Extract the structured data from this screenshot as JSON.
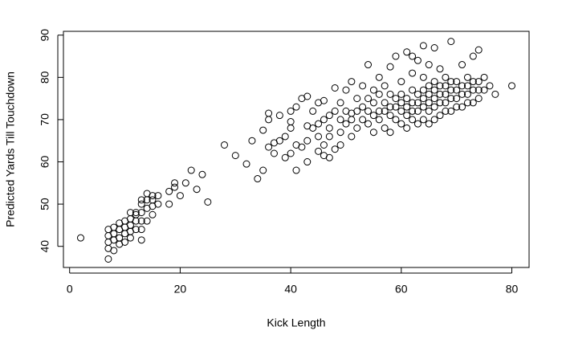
{
  "chart_data": {
    "type": "scatter",
    "x_label": "Kick Length",
    "y_label": "Predicted Yards Till Touchdown",
    "xlim": [
      -1.12,
      83.12
    ],
    "ylim": [
      35.0,
      90.9
    ],
    "xticks": [
      0,
      20,
      40,
      60,
      80
    ],
    "yticks": [
      40,
      50,
      60,
      70,
      80,
      90
    ],
    "color": "#000000",
    "x": [
      2,
      7,
      7,
      7,
      7,
      7,
      8,
      8,
      8,
      8,
      9,
      9,
      9,
      9,
      10,
      10,
      10,
      10,
      11,
      11,
      11,
      11,
      11,
      12,
      12,
      12,
      12,
      13,
      13,
      13,
      13,
      13,
      13,
      14,
      14,
      14,
      14,
      15,
      15,
      15,
      15,
      16,
      16,
      18,
      18,
      19,
      19,
      20,
      21,
      22,
      23,
      24,
      25,
      28,
      30,
      32,
      33,
      34,
      35,
      35,
      36,
      36,
      36,
      37,
      37,
      38,
      38,
      39,
      39,
      40,
      40,
      40,
      40,
      41,
      41,
      41,
      42,
      42,
      43,
      43,
      43,
      43,
      44,
      44,
      45,
      45,
      45,
      45,
      46,
      46,
      46,
      46,
      47,
      47,
      47,
      47,
      48,
      48,
      48,
      49,
      49,
      49,
      49,
      50,
      50,
      50,
      51,
      51,
      51,
      51,
      52,
      52,
      52,
      53,
      53,
      53,
      54,
      54,
      54,
      54,
      55,
      55,
      55,
      55,
      56,
      56,
      56,
      56,
      57,
      57,
      57,
      57,
      58,
      58,
      58,
      58,
      58,
      59,
      59,
      59,
      59,
      60,
      60,
      60,
      60,
      60,
      61,
      61,
      61,
      61,
      61,
      62,
      62,
      62,
      62,
      62,
      62,
      63,
      63,
      63,
      63,
      63,
      64,
      64,
      64,
      64,
      64,
      64,
      65,
      65,
      65,
      65,
      65,
      65,
      66,
      66,
      66,
      66,
      66,
      66,
      67,
      67,
      67,
      67,
      67,
      68,
      68,
      68,
      68,
      68,
      69,
      69,
      69,
      69,
      69,
      70,
      70,
      70,
      70,
      71,
      71,
      71,
      71,
      72,
      72,
      72,
      72,
      73,
      73,
      73,
      73,
      74,
      74,
      74,
      74,
      75,
      75,
      76,
      77,
      80
    ],
    "y": [
      42,
      37,
      39.5,
      41,
      42.5,
      44,
      39,
      41.5,
      43,
      44.5,
      40.5,
      42,
      44,
      45.5,
      41,
      43,
      44.5,
      46,
      42,
      43.5,
      45,
      46.5,
      48,
      44,
      46,
      47.5,
      48,
      41.5,
      44,
      46,
      48,
      50,
      51,
      46,
      49,
      51,
      52.5,
      47.5,
      49.5,
      51,
      52,
      50,
      52,
      50,
      53,
      54,
      55,
      52,
      55,
      58,
      53.5,
      57,
      50.5,
      64,
      61.5,
      59.5,
      65,
      56,
      58,
      67.5,
      70,
      71.5,
      63.5,
      62,
      64.5,
      71,
      65,
      66,
      61,
      62,
      68,
      69.5,
      72,
      58,
      64,
      73,
      63.5,
      75,
      60,
      65,
      68.5,
      75.5,
      68,
      72,
      66,
      69,
      74,
      62.5,
      61.5,
      64,
      70,
      74.5,
      61,
      66,
      68,
      71,
      63,
      72,
      77.5,
      67,
      70,
      74,
      64,
      69,
      72,
      77,
      66,
      70,
      71.5,
      79,
      68,
      72,
      75,
      70,
      73,
      78,
      69,
      72,
      75,
      83,
      67,
      71,
      74,
      77,
      70,
      72,
      76,
      80,
      68,
      72,
      74,
      78,
      67,
      71,
      73,
      76,
      82.5,
      70,
      73,
      75,
      85,
      69,
      72,
      74,
      76,
      79,
      68,
      71,
      73,
      75,
      86,
      70,
      72,
      74,
      77,
      81,
      85,
      69,
      72,
      74,
      76,
      84,
      70,
      73,
      75,
      77,
      80,
      87.5,
      69,
      72,
      74,
      76,
      78,
      83,
      70,
      73,
      75,
      77,
      79,
      87,
      71,
      74,
      76,
      78,
      82,
      72,
      74,
      76,
      78,
      80,
      72,
      75,
      77,
      79,
      88.5,
      73,
      75,
      77,
      79,
      73,
      76,
      78,
      83,
      74,
      76,
      78,
      80,
      74,
      77,
      79,
      85,
      75,
      77,
      79,
      86.5,
      77,
      80,
      78,
      76,
      78
    ]
  }
}
